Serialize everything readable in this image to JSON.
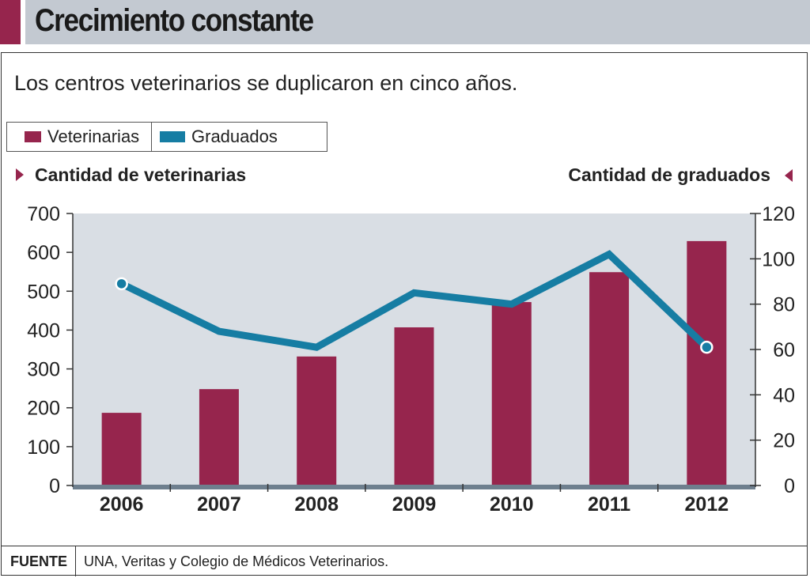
{
  "header": {
    "title": "Crecimiento constante",
    "subtitle": "Los centros veterinarios se duplicaron en cinco años."
  },
  "legend": [
    {
      "label": "Veterinarias",
      "color": "#96254d"
    },
    {
      "label": "Graduados",
      "color": "#167da3"
    }
  ],
  "footer": {
    "label": "FUENTE",
    "text": "UNA, Veritas y Colegio de Médicos Veterinarios."
  },
  "chart_data": {
    "type": "bar",
    "title": "Crecimiento constante",
    "subtitle": "Los centros veterinarios se duplicaron en cinco años.",
    "categories": [
      "2006",
      "2007",
      "2008",
      "2009",
      "2010",
      "2011",
      "2012"
    ],
    "series": [
      {
        "name": "Veterinarias",
        "type": "bar",
        "axis": "left",
        "color": "#96254d",
        "values": [
          187,
          248,
          332,
          407,
          472,
          549,
          629
        ]
      },
      {
        "name": "Graduados",
        "type": "line",
        "axis": "right",
        "color": "#167da3",
        "values": [
          89,
          68,
          61,
          85,
          80,
          102,
          61
        ]
      }
    ],
    "ylabel_left": "Cantidad de veterinarias",
    "ylabel_right": "Cantidad de graduados",
    "ylim_left": [
      0,
      700
    ],
    "ylim_right": [
      0,
      120
    ],
    "yticks_left": [
      "0",
      "100",
      "200",
      "300",
      "400",
      "500",
      "600",
      "700"
    ],
    "yticks_right": [
      "0",
      "20",
      "40",
      "60",
      "80",
      "100",
      "120"
    ],
    "line_markers_on": [
      "2006",
      "2012"
    ],
    "grid": false,
    "legend_position": "top-left",
    "plot_background": "#d9dee4",
    "baseline_color": "#6e7f8e"
  }
}
